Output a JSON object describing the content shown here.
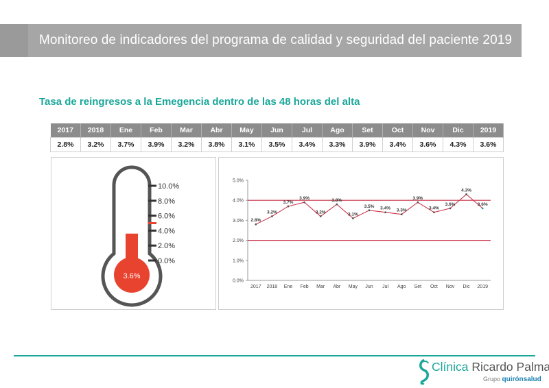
{
  "header": {
    "title": "Monitoreo de indicadores del programa de calidad y seguridad del paciente 2019"
  },
  "subtitle": "Tasa de reingresos a la Emegencia dentro de las 48 horas del alta",
  "table": {
    "headers": [
      "2017",
      "2018",
      "Ene",
      "Feb",
      "Mar",
      "Abr",
      "May",
      "Jun",
      "Jul",
      "Ago",
      "Set",
      "Oct",
      "Nov",
      "Dic",
      "2019"
    ],
    "values": [
      "2.8%",
      "3.2%",
      "3.7%",
      "3.9%",
      "3.2%",
      "3.8%",
      "3.1%",
      "3.5%",
      "3.4%",
      "3.3%",
      "3.9%",
      "3.4%",
      "3.6%",
      "4.3%",
      "3.6%"
    ]
  },
  "thermometer": {
    "value": 3.6,
    "value_label": "3.6%",
    "scale_labels": [
      "10.0%",
      "8.0%",
      "6.0%",
      "4.0%",
      "2.0%",
      "0.0%"
    ],
    "scale_max": 10,
    "marker_value": 5,
    "fill_color": "#e8432e",
    "outline_color": "#555555"
  },
  "chart_data": {
    "type": "line",
    "categories": [
      "2017",
      "2018",
      "Ene",
      "Feb",
      "Mar",
      "Abr",
      "May",
      "Jun",
      "Jul",
      "Ago",
      "Set",
      "Oct",
      "Nov",
      "Dic",
      "2019"
    ],
    "series": [
      {
        "values": [
          2.8,
          3.2,
          3.7,
          3.9,
          3.2,
          3.8,
          3.1,
          3.5,
          3.4,
          3.3,
          3.9,
          3.4,
          3.6,
          4.3,
          3.6
        ],
        "data_labels": [
          "2.8%",
          "3.2%",
          "3.7%",
          "3.9%",
          "3.2%",
          "3.8%",
          "3.1%",
          "3.5%",
          "3.4%",
          "3.3%",
          "3.9%",
          "3.4%",
          "3.6%",
          "4.3%",
          "3.6%"
        ],
        "color": "#c8334a"
      }
    ],
    "reference_lines": [
      4.0,
      2.0
    ],
    "reference_color": "#c8334a",
    "ylim": [
      0,
      5
    ],
    "yticks": [
      "0.0%",
      "1.0%",
      "2.0%",
      "3.0%",
      "4.0%",
      "5.0%"
    ],
    "grid": false
  },
  "footer": {
    "logo_brand": "Clínica Ricardo Palma",
    "logo_brand_a": "Clínica ",
    "logo_brand_b": "Ricardo Palma",
    "logo_group_label": "Grupo",
    "logo_group_name": "quirónsalud",
    "accent_color": "#1aa79a"
  }
}
